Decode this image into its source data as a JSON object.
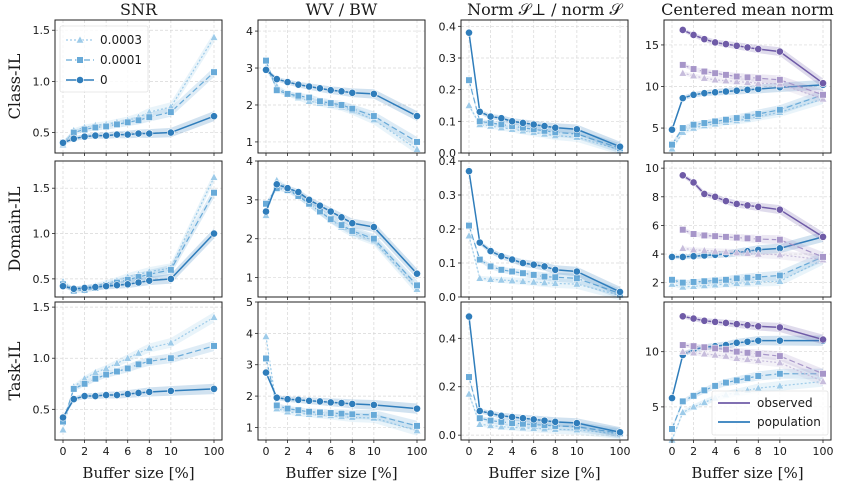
{
  "figure": {
    "col_titles": [
      "SNR",
      "WV / BW",
      "Norm 𝒮⊥ / norm 𝒮",
      "Centered mean norm"
    ],
    "row_labels": [
      "Class-IL",
      "Domain-IL",
      "Task-IL"
    ],
    "xlabel": "Buffer size [%]",
    "x_tick_labels": [
      "0",
      "2",
      "4",
      "6",
      "8",
      "10",
      "100"
    ]
  },
  "legend_wd": {
    "title": "",
    "entries": [
      {
        "label": "0.0003",
        "marker": "triangle"
      },
      {
        "label": "0.0001",
        "marker": "square"
      },
      {
        "label": "0",
        "marker": "circle"
      }
    ]
  },
  "legend_pop": {
    "entries": [
      {
        "label": "observed"
      },
      {
        "label": "population"
      }
    ]
  },
  "colors": {
    "wd0003": "#9dcbe9",
    "wd0001": "#68aad8",
    "wd0": "#2f7dbb",
    "obs0003": "#c7bddc",
    "obs0001": "#a796c9",
    "obs0": "#6f5ba7"
  },
  "chart_data": [
    {
      "type": "line",
      "row": "Class-IL",
      "col": "SNR",
      "x": [
        0,
        1,
        2,
        3,
        4,
        5,
        6,
        7,
        8,
        10,
        100
      ],
      "ylim": [
        0.3,
        1.6
      ],
      "yticks": [
        0.5,
        1.0,
        1.5
      ],
      "ytick_labels": [
        "0.5",
        "1.0",
        "1.5"
      ],
      "series": [
        {
          "name": "0.0003",
          "values": [
            0.38,
            0.52,
            0.55,
            0.57,
            0.58,
            0.6,
            0.62,
            0.65,
            0.7,
            0.75,
            1.43
          ]
        },
        {
          "name": "0.0001",
          "values": [
            0.4,
            0.5,
            0.53,
            0.55,
            0.56,
            0.58,
            0.6,
            0.62,
            0.65,
            0.7,
            1.09
          ]
        },
        {
          "name": "0",
          "values": [
            0.4,
            0.44,
            0.46,
            0.47,
            0.47,
            0.48,
            0.48,
            0.49,
            0.49,
            0.5,
            0.66
          ]
        }
      ]
    },
    {
      "type": "line",
      "row": "Class-IL",
      "col": "WV / BW",
      "x": [
        0,
        1,
        2,
        3,
        4,
        5,
        6,
        7,
        8,
        10,
        100
      ],
      "ylim": [
        0.7,
        4.3
      ],
      "yticks": [
        1,
        2,
        3,
        4
      ],
      "ytick_labels": [
        "1",
        "2",
        "3",
        "4"
      ],
      "series": [
        {
          "name": "0.0003",
          "values": [
            3.0,
            2.5,
            2.3,
            2.2,
            2.1,
            2.05,
            2.0,
            1.95,
            1.85,
            1.6,
            0.8
          ]
        },
        {
          "name": "0.0001",
          "values": [
            3.2,
            2.4,
            2.3,
            2.25,
            2.2,
            2.1,
            2.05,
            2.0,
            1.9,
            1.7,
            1.0
          ]
        },
        {
          "name": "0",
          "values": [
            2.95,
            2.7,
            2.62,
            2.55,
            2.5,
            2.45,
            2.4,
            2.37,
            2.33,
            2.3,
            1.7
          ]
        }
      ]
    },
    {
      "type": "line",
      "row": "Class-IL",
      "col": "Norm S-perp / norm S",
      "x": [
        0,
        1,
        2,
        3,
        4,
        5,
        6,
        7,
        8,
        10,
        100
      ],
      "ylim": [
        0,
        0.42
      ],
      "yticks": [
        0.0,
        0.1,
        0.2,
        0.3,
        0.4
      ],
      "ytick_labels": [
        "0.0",
        "0.1",
        "0.2",
        "0.3",
        "0.4"
      ],
      "series": [
        {
          "name": "0.0003",
          "values": [
            0.15,
            0.09,
            0.085,
            0.08,
            0.075,
            0.07,
            0.065,
            0.06,
            0.055,
            0.05,
            0.01
          ]
        },
        {
          "name": "0.0001",
          "values": [
            0.23,
            0.1,
            0.095,
            0.09,
            0.085,
            0.08,
            0.075,
            0.07,
            0.065,
            0.06,
            0.015
          ]
        },
        {
          "name": "0",
          "values": [
            0.38,
            0.13,
            0.115,
            0.11,
            0.1,
            0.095,
            0.09,
            0.085,
            0.08,
            0.075,
            0.02
          ]
        }
      ]
    },
    {
      "type": "line",
      "row": "Class-IL",
      "col": "Centered mean norm",
      "x": [
        0,
        1,
        2,
        3,
        4,
        5,
        6,
        7,
        8,
        10,
        100
      ],
      "ylim": [
        2,
        18
      ],
      "yticks": [
        5,
        10,
        15
      ],
      "ytick_labels": [
        "5",
        "10",
        "15"
      ],
      "series": [
        {
          "name": "0.0003 population",
          "values": [
            2.5,
            4.5,
            5.0,
            5.3,
            5.5,
            5.7,
            5.9,
            6.1,
            6.4,
            6.9,
            8.5
          ]
        },
        {
          "name": "0.0001 population",
          "values": [
            3.0,
            5.0,
            5.4,
            5.6,
            5.8,
            6.0,
            6.2,
            6.4,
            6.7,
            7.2,
            9.0
          ]
        },
        {
          "name": "0 population",
          "values": [
            4.8,
            8.6,
            9.0,
            9.2,
            9.3,
            9.4,
            9.5,
            9.6,
            9.7,
            9.9,
            10.2
          ]
        },
        {
          "name": "0.0003 observed",
          "values": [
            null,
            11.6,
            11.3,
            11.0,
            10.8,
            10.7,
            10.6,
            10.5,
            10.4,
            10.3,
            8.5
          ]
        },
        {
          "name": "0.0001 observed",
          "values": [
            null,
            12.6,
            12.1,
            11.8,
            11.6,
            11.4,
            11.2,
            11.1,
            11.0,
            10.8,
            9.0
          ]
        },
        {
          "name": "0 observed",
          "values": [
            null,
            16.8,
            16.2,
            15.7,
            15.3,
            15.1,
            14.9,
            14.7,
            14.5,
            14.2,
            10.4
          ]
        }
      ]
    },
    {
      "type": "line",
      "row": "Domain-IL",
      "col": "SNR",
      "x": [
        0,
        1,
        2,
        3,
        4,
        5,
        6,
        7,
        8,
        10,
        100
      ],
      "ylim": [
        0.3,
        1.8
      ],
      "yticks": [
        0.5,
        1.0,
        1.5
      ],
      "ytick_labels": [
        "0.5",
        "1.0",
        "1.5"
      ],
      "series": [
        {
          "name": "0.0003",
          "values": [
            0.47,
            0.38,
            0.4,
            0.42,
            0.45,
            0.48,
            0.52,
            0.55,
            0.58,
            0.62,
            1.62
          ]
        },
        {
          "name": "0.0001",
          "values": [
            0.44,
            0.37,
            0.38,
            0.4,
            0.43,
            0.46,
            0.49,
            0.52,
            0.55,
            0.6,
            1.45
          ]
        },
        {
          "name": "0",
          "values": [
            0.42,
            0.39,
            0.4,
            0.41,
            0.42,
            0.43,
            0.44,
            0.46,
            0.48,
            0.5,
            1.0
          ]
        }
      ]
    },
    {
      "type": "line",
      "row": "Domain-IL",
      "col": "WV / BW",
      "x": [
        0,
        1,
        2,
        3,
        4,
        5,
        6,
        7,
        8,
        10,
        100
      ],
      "ylim": [
        0.5,
        4.0
      ],
      "yticks": [
        1,
        2,
        3,
        4
      ],
      "ytick_labels": [
        "1",
        "2",
        "3",
        "4"
      ],
      "series": [
        {
          "name": "0.0003",
          "values": [
            2.6,
            3.5,
            3.3,
            3.1,
            2.9,
            2.7,
            2.5,
            2.3,
            2.15,
            1.95,
            0.7
          ]
        },
        {
          "name": "0.0001",
          "values": [
            2.9,
            3.3,
            3.25,
            3.1,
            2.9,
            2.7,
            2.5,
            2.35,
            2.2,
            2.0,
            0.8
          ]
        },
        {
          "name": "0",
          "values": [
            2.7,
            3.4,
            3.3,
            3.2,
            3.0,
            2.85,
            2.7,
            2.55,
            2.4,
            2.3,
            1.1
          ]
        }
      ]
    },
    {
      "type": "line",
      "row": "Domain-IL",
      "col": "Norm S-perp / norm S",
      "x": [
        0,
        1,
        2,
        3,
        4,
        5,
        6,
        7,
        8,
        10,
        100
      ],
      "ylim": [
        0,
        0.4
      ],
      "yticks": [
        0.0,
        0.1,
        0.2,
        0.3,
        0.4
      ],
      "ytick_labels": [
        "0.0",
        "0.1",
        "0.2",
        "0.3",
        "0.4"
      ],
      "series": [
        {
          "name": "0.0003",
          "values": [
            0.18,
            0.055,
            0.052,
            0.05,
            0.048,
            0.046,
            0.044,
            0.042,
            0.04,
            0.038,
            0.005
          ]
        },
        {
          "name": "0.0001",
          "values": [
            0.21,
            0.11,
            0.09,
            0.08,
            0.075,
            0.07,
            0.065,
            0.06,
            0.058,
            0.055,
            0.01
          ]
        },
        {
          "name": "0",
          "values": [
            0.37,
            0.16,
            0.135,
            0.12,
            0.11,
            0.1,
            0.095,
            0.09,
            0.08,
            0.075,
            0.015
          ]
        }
      ]
    },
    {
      "type": "line",
      "row": "Domain-IL",
      "col": "Centered mean norm",
      "x": [
        0,
        1,
        2,
        3,
        4,
        5,
        6,
        7,
        8,
        10,
        100
      ],
      "ylim": [
        1,
        10.5
      ],
      "yticks": [
        2,
        4,
        6,
        8,
        10
      ],
      "ytick_labels": [
        "2",
        "4",
        "6",
        "8",
        "10"
      ],
      "series": [
        {
          "name": "0.0003 population",
          "values": [
            1.9,
            1.7,
            1.75,
            1.8,
            1.85,
            1.9,
            1.95,
            2.0,
            2.05,
            2.1,
            3.6
          ]
        },
        {
          "name": "0.0001 population",
          "values": [
            2.2,
            2.0,
            2.05,
            2.1,
            2.15,
            2.2,
            2.3,
            2.35,
            2.4,
            2.5,
            3.8
          ]
        },
        {
          "name": "0 population",
          "values": [
            3.8,
            3.8,
            3.85,
            3.9,
            3.95,
            4.0,
            4.1,
            4.2,
            4.3,
            4.4,
            5.2
          ]
        },
        {
          "name": "0.0003 observed",
          "values": [
            null,
            4.4,
            4.3,
            4.25,
            4.2,
            4.15,
            4.1,
            4.05,
            4.0,
            3.95,
            3.6
          ]
        },
        {
          "name": "0.0001 observed",
          "values": [
            null,
            5.7,
            5.4,
            5.3,
            5.25,
            5.2,
            5.15,
            5.1,
            5.05,
            5.0,
            3.8
          ]
        },
        {
          "name": "0 observed",
          "values": [
            null,
            9.5,
            9.0,
            8.2,
            8.0,
            7.7,
            7.5,
            7.4,
            7.3,
            7.1,
            5.2
          ]
        }
      ]
    },
    {
      "type": "line",
      "row": "Task-IL",
      "col": "SNR",
      "x": [
        0,
        1,
        2,
        3,
        4,
        5,
        6,
        7,
        8,
        10,
        100
      ],
      "ylim": [
        0.2,
        1.55
      ],
      "yticks": [
        0.5,
        1.0,
        1.5
      ],
      "ytick_labels": [
        "0.5",
        "1.0",
        "1.5"
      ],
      "series": [
        {
          "name": "0.0003",
          "values": [
            0.3,
            0.72,
            0.8,
            0.86,
            0.9,
            0.95,
            1.0,
            1.05,
            1.1,
            1.15,
            1.4
          ]
        },
        {
          "name": "0.0001",
          "values": [
            0.38,
            0.7,
            0.75,
            0.8,
            0.84,
            0.87,
            0.9,
            0.94,
            0.97,
            1.0,
            1.12
          ]
        },
        {
          "name": "0",
          "values": [
            0.42,
            0.6,
            0.63,
            0.63,
            0.64,
            0.64,
            0.65,
            0.66,
            0.67,
            0.68,
            0.7
          ]
        }
      ]
    },
    {
      "type": "line",
      "row": "Task-IL",
      "col": "WV / BW",
      "x": [
        0,
        1,
        2,
        3,
        4,
        5,
        6,
        7,
        8,
        10,
        100
      ],
      "ylim": [
        0.6,
        5.0
      ],
      "yticks": [
        1,
        2,
        3,
        4,
        5
      ],
      "ytick_labels": [
        "1",
        "2",
        "3",
        "4",
        "5"
      ],
      "series": [
        {
          "name": "0.0003",
          "values": [
            3.9,
            1.6,
            1.5,
            1.45,
            1.42,
            1.4,
            1.38,
            1.35,
            1.32,
            1.3,
            0.9
          ]
        },
        {
          "name": "0.0001",
          "values": [
            3.2,
            1.7,
            1.6,
            1.55,
            1.5,
            1.48,
            1.46,
            1.44,
            1.42,
            1.4,
            1.05
          ]
        },
        {
          "name": "0",
          "values": [
            2.75,
            1.95,
            1.9,
            1.88,
            1.85,
            1.83,
            1.8,
            1.78,
            1.75,
            1.72,
            1.6
          ]
        }
      ]
    },
    {
      "type": "line",
      "row": "Task-IL",
      "col": "Norm S-perp / norm S",
      "x": [
        0,
        1,
        2,
        3,
        4,
        5,
        6,
        7,
        8,
        10,
        100
      ],
      "ylim": [
        -0.02,
        0.55
      ],
      "yticks": [
        0.0,
        0.2,
        0.4
      ],
      "ytick_labels": [
        "0.0",
        "0.2",
        "0.4"
      ],
      "series": [
        {
          "name": "0.0003",
          "values": [
            0.17,
            0.045,
            0.04,
            0.035,
            0.032,
            0.03,
            0.028,
            0.026,
            0.024,
            0.022,
            0.005
          ]
        },
        {
          "name": "0.0001",
          "values": [
            0.24,
            0.07,
            0.06,
            0.055,
            0.05,
            0.047,
            0.044,
            0.041,
            0.038,
            0.035,
            0.008
          ]
        },
        {
          "name": "0",
          "values": [
            0.49,
            0.1,
            0.09,
            0.08,
            0.075,
            0.07,
            0.065,
            0.06,
            0.055,
            0.05,
            0.012
          ]
        }
      ]
    },
    {
      "type": "line",
      "row": "Task-IL",
      "col": "Centered mean norm",
      "x": [
        0,
        1,
        2,
        3,
        4,
        5,
        6,
        7,
        8,
        10,
        100
      ],
      "ylim": [
        2,
        14.5
      ],
      "yticks": [
        5,
        10
      ],
      "ytick_labels": [
        "5",
        "10"
      ],
      "series": [
        {
          "name": "0.0003 population",
          "values": [
            2.0,
            4.5,
            5.0,
            5.4,
            5.8,
            6.1,
            6.3,
            6.5,
            6.7,
            6.9,
            7.3
          ]
        },
        {
          "name": "0.0001 population",
          "values": [
            3.0,
            5.5,
            6.0,
            6.5,
            6.9,
            7.2,
            7.4,
            7.6,
            7.8,
            8.0,
            8.0
          ]
        },
        {
          "name": "0 population",
          "values": [
            5.8,
            9.7,
            10.2,
            10.4,
            10.5,
            10.6,
            10.8,
            10.9,
            11.0,
            11.0,
            11.0
          ]
        },
        {
          "name": "0.0003 observed",
          "values": [
            null,
            10.0,
            9.9,
            9.8,
            9.7,
            9.6,
            9.4,
            9.3,
            9.2,
            9.0,
            7.3
          ]
        },
        {
          "name": "0.0001 observed",
          "values": [
            null,
            10.6,
            10.5,
            10.4,
            10.3,
            10.2,
            10.0,
            9.9,
            9.8,
            9.6,
            8.0
          ]
        },
        {
          "name": "0 observed",
          "values": [
            null,
            13.2,
            13.0,
            12.8,
            12.7,
            12.6,
            12.5,
            12.4,
            12.3,
            12.2,
            11.1
          ]
        }
      ]
    }
  ]
}
